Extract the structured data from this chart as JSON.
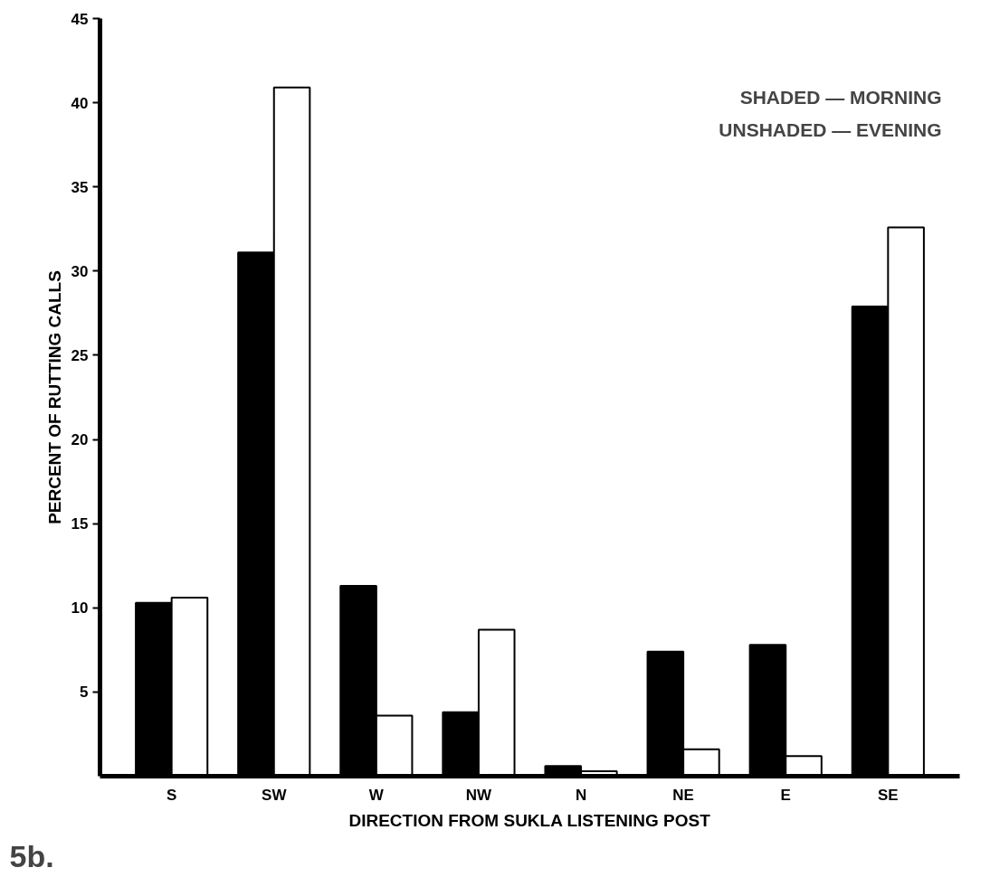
{
  "chart_data": {
    "type": "bar",
    "xlabel": "DIRECTION FROM SUKLA LISTENING POST",
    "ylabel": "PERCENT OF RUTTING CALLS",
    "categories": [
      "S",
      "SW",
      "W",
      "NW",
      "N",
      "NE",
      "E",
      "SE"
    ],
    "series": [
      {
        "color": "#000000",
        "values": [
          10.3,
          31.1,
          11.3,
          3.8,
          0.6,
          7.4,
          7.8,
          27.9
        ]
      },
      {
        "color": "#ffffff",
        "values": [
          10.6,
          40.9,
          3.6,
          8.7,
          0.3,
          1.6,
          1.2,
          32.6
        ]
      }
    ],
    "ylim": [
      0,
      45
    ],
    "yticks": [
      5,
      10,
      15,
      20,
      25,
      30,
      35,
      40,
      45
    ],
    "grid": false,
    "annotations": [
      "SHADED — MORNING",
      "UNSHADED — EVENING",
      "5b."
    ]
  }
}
